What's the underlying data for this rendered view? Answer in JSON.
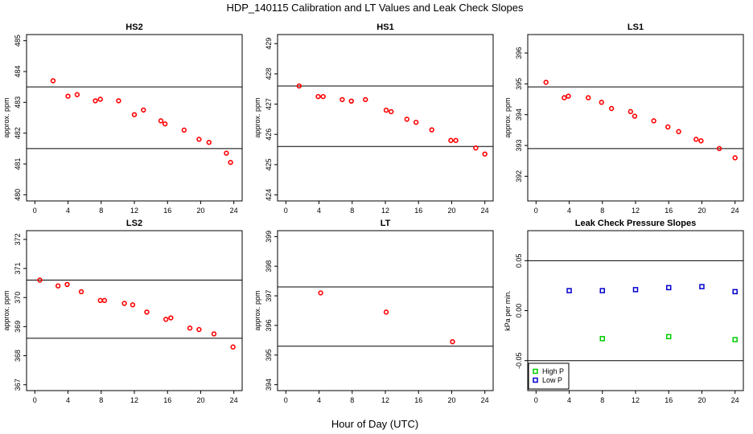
{
  "title": "HDP_140115  Calibration and LT Values and Leak Check Slopes",
  "xlabel": "Hour of Day (UTC)",
  "colors": {
    "hs_points": "#ff0000",
    "high_p": "#00cc00",
    "low_p": "#0000cc",
    "lines": "#000000"
  },
  "chart_data": [
    {
      "type": "scatter",
      "title": "HS2",
      "ylabel": "approx. ppm",
      "xlim": [
        -1,
        25
      ],
      "ylim": [
        479.8,
        485.2
      ],
      "xticks": [
        0,
        4,
        8,
        12,
        16,
        20,
        24
      ],
      "yticks": [
        480,
        481,
        482,
        483,
        484,
        485
      ],
      "hlines": [
        483.5,
        481.5
      ],
      "x": [
        2.2,
        4.0,
        5.1,
        7.3,
        7.9,
        10.1,
        12.0,
        13.1,
        15.2,
        15.7,
        18.0,
        19.8,
        21.0,
        23.1,
        23.6
      ],
      "y": [
        483.7,
        483.2,
        483.25,
        483.05,
        483.1,
        483.05,
        482.6,
        482.75,
        482.4,
        482.3,
        482.1,
        481.8,
        481.7,
        481.35,
        481.05
      ]
    },
    {
      "type": "scatter",
      "title": "HS1",
      "ylabel": "approx. ppm",
      "xlim": [
        -1,
        25
      ],
      "ylim": [
        423.8,
        429.3
      ],
      "xticks": [
        0,
        4,
        8,
        12,
        16,
        20,
        24
      ],
      "yticks": [
        424,
        425,
        426,
        427,
        428,
        429
      ],
      "hlines": [
        427.6,
        425.6
      ],
      "x": [
        1.6,
        3.9,
        4.5,
        6.8,
        7.9,
        9.6,
        12.1,
        12.7,
        14.6,
        15.7,
        17.6,
        19.9,
        20.5,
        22.9,
        24.0
      ],
      "y": [
        427.6,
        427.25,
        427.25,
        427.15,
        427.1,
        427.15,
        426.8,
        426.75,
        426.5,
        426.4,
        426.15,
        425.8,
        425.8,
        425.55,
        425.35
      ]
    },
    {
      "type": "scatter",
      "title": "LS1",
      "ylabel": "approx. ppm",
      "xlim": [
        -1,
        25
      ],
      "ylim": [
        391.2,
        396.6
      ],
      "xticks": [
        0,
        4,
        8,
        12,
        16,
        20,
        24
      ],
      "yticks": [
        392,
        393,
        394,
        395,
        396
      ],
      "hlines": [
        394.9,
        392.9
      ],
      "x": [
        1.2,
        3.4,
        3.9,
        6.3,
        7.9,
        9.1,
        11.4,
        11.9,
        14.2,
        15.9,
        17.2,
        19.3,
        19.9,
        22.1,
        24.0
      ],
      "y": [
        395.05,
        394.55,
        394.6,
        394.55,
        394.4,
        394.2,
        394.1,
        393.95,
        393.8,
        393.6,
        393.45,
        393.2,
        393.15,
        392.9,
        392.6
      ]
    },
    {
      "type": "scatter",
      "title": "LS2",
      "ylabel": "approx. ppm",
      "xlim": [
        -1,
        25
      ],
      "ylim": [
        366.8,
        372.3
      ],
      "xticks": [
        0,
        4,
        8,
        12,
        16,
        20,
        24
      ],
      "yticks": [
        367,
        368,
        369,
        370,
        371,
        372
      ],
      "hlines": [
        370.6,
        368.6
      ],
      "x": [
        0.6,
        2.8,
        3.9,
        5.6,
        7.9,
        8.4,
        10.8,
        11.8,
        13.5,
        15.8,
        16.4,
        18.7,
        19.8,
        21.6,
        23.9
      ],
      "y": [
        370.6,
        370.4,
        370.45,
        370.2,
        369.9,
        369.9,
        369.8,
        369.75,
        369.5,
        369.25,
        369.3,
        368.95,
        368.9,
        368.75,
        368.3
      ]
    },
    {
      "type": "scatter",
      "title": "LT",
      "ylabel": "approx. ppm",
      "xlim": [
        -1,
        25
      ],
      "ylim": [
        393.8,
        399.2
      ],
      "xticks": [
        0,
        4,
        8,
        12,
        16,
        20,
        24
      ],
      "yticks": [
        394,
        395,
        396,
        397,
        398,
        399
      ],
      "hlines": [
        397.3,
        395.3
      ],
      "x": [
        4.2,
        12.1,
        20.1
      ],
      "y": [
        397.1,
        396.45,
        395.45
      ]
    },
    {
      "type": "scatter",
      "title": "Leak Check Pressure Slopes",
      "ylabel": "kPa per min.",
      "xlim": [
        -1,
        25
      ],
      "ylim": [
        -0.08,
        0.08
      ],
      "xticks": [
        0,
        4,
        8,
        12,
        16,
        20,
        24
      ],
      "yticks": [
        -0.05,
        0.0,
        0.05
      ],
      "ytick_labels": [
        "-0.05",
        "0.00",
        "0.05"
      ],
      "hlines": [
        0.05,
        -0.05
      ],
      "series": [
        {
          "name": "High P",
          "x": [
            8,
            16,
            24
          ],
          "y": [
            -0.028,
            -0.026,
            -0.029
          ]
        },
        {
          "name": "Low P",
          "x": [
            4,
            8,
            12,
            16,
            20,
            24
          ],
          "y": [
            0.02,
            0.02,
            0.021,
            0.023,
            0.024,
            0.019
          ]
        }
      ],
      "legend": [
        "High P",
        "Low P"
      ]
    }
  ]
}
